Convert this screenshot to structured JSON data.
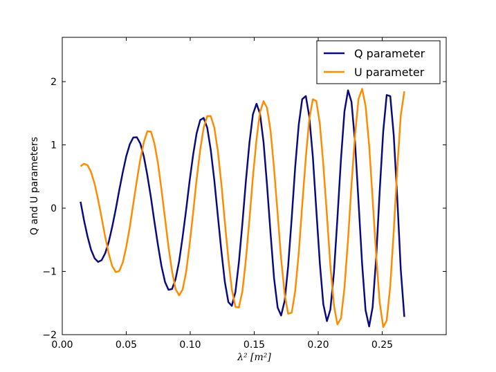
{
  "chart_data": {
    "type": "line",
    "xlabel": "λ² [m²]",
    "ylabel": "Q and U parameters",
    "xlim": [
      0.0,
      0.3
    ],
    "ylim": [
      -2.0,
      2.7
    ],
    "grid": false,
    "legend_placement": "top-right",
    "x_ticks": [
      "0.00",
      "0.05",
      "0.10",
      "0.15",
      "0.20",
      "0.25"
    ],
    "y_ticks": [
      "−2",
      "−1",
      "0",
      "1",
      "2"
    ],
    "series": [
      {
        "name": "Q parameter",
        "color": "#0a0a80",
        "x": [
          0.0143,
          0.017,
          0.0198,
          0.0225,
          0.0253,
          0.028,
          0.0308,
          0.0335,
          0.0363,
          0.039,
          0.0418,
          0.0445,
          0.0473,
          0.05,
          0.0528,
          0.0555,
          0.0583,
          0.061,
          0.0638,
          0.0665,
          0.0693,
          0.072,
          0.0748,
          0.0775,
          0.0803,
          0.083,
          0.0858,
          0.0885,
          0.0913,
          0.094,
          0.0968,
          0.0995,
          0.1023,
          0.105,
          0.1078,
          0.1105,
          0.1133,
          0.116,
          0.1188,
          0.1215,
          0.1243,
          0.127,
          0.1298,
          0.1325,
          0.1353,
          0.138,
          0.1408,
          0.1435,
          0.1463,
          0.149,
          0.1518,
          0.1545,
          0.1573,
          0.16,
          0.1628,
          0.1655,
          0.1683,
          0.171,
          0.1738,
          0.1765,
          0.1793,
          0.182,
          0.1848,
          0.1875,
          0.1903,
          0.193,
          0.1958,
          0.1985,
          0.2013,
          0.204,
          0.2068,
          0.2095,
          0.2123,
          0.215,
          0.2178,
          0.2205,
          0.2233,
          0.226,
          0.2288,
          0.2315,
          0.2343,
          0.237,
          0.2398,
          0.2425,
          0.2453,
          0.248,
          0.2508,
          0.2535,
          0.2563,
          0.259,
          0.2618,
          0.2645,
          0.2673
        ],
        "y": [
          0.101,
          -0.192,
          -0.453,
          -0.658,
          -0.793,
          -0.849,
          -0.822,
          -0.715,
          -0.536,
          -0.297,
          -0.018,
          0.28,
          0.568,
          0.82,
          1.011,
          1.117,
          1.12,
          1.021,
          0.812,
          0.518,
          0.166,
          -0.214,
          -0.586,
          -0.914,
          -1.167,
          -1.291,
          -1.278,
          -1.124,
          -0.844,
          -0.463,
          -0.026,
          0.428,
          0.848,
          1.184,
          1.393,
          1.426,
          1.269,
          0.925,
          0.443,
          -0.106,
          -0.672,
          -1.161,
          -1.485,
          -1.545,
          -1.326,
          -0.86,
          -0.232,
          0.432,
          1.041,
          1.485,
          1.65,
          1.494,
          1.04,
          0.366,
          -0.41,
          -1.109,
          -1.571,
          -1.697,
          -1.464,
          -0.918,
          -0.154,
          0.647,
          1.322,
          1.723,
          1.772,
          1.451,
          0.812,
          -0.027,
          -0.879,
          -1.52,
          -1.785,
          -1.603,
          -1.016,
          -0.161,
          0.78,
          1.528,
          1.862,
          1.68,
          1.034,
          0.097,
          -0.883,
          -1.614,
          -1.87,
          -1.566,
          -0.78,
          0.256,
          1.214,
          1.788,
          1.77,
          1.156,
          0.151,
          -0.971,
          -1.719
        ]
      },
      {
        "name": "U parameter",
        "color": "#ff8c00",
        "x": [
          0.0143,
          0.017,
          0.0198,
          0.0225,
          0.0253,
          0.028,
          0.0308,
          0.0335,
          0.0363,
          0.039,
          0.0418,
          0.0445,
          0.0473,
          0.05,
          0.0528,
          0.0555,
          0.0583,
          0.061,
          0.0638,
          0.0665,
          0.0693,
          0.072,
          0.0748,
          0.0775,
          0.0803,
          0.083,
          0.0858,
          0.0885,
          0.0913,
          0.094,
          0.0968,
          0.0995,
          0.1023,
          0.105,
          0.1078,
          0.1105,
          0.1133,
          0.116,
          0.1188,
          0.1215,
          0.1243,
          0.127,
          0.1298,
          0.1325,
          0.1353,
          0.138,
          0.1408,
          0.1435,
          0.1463,
          0.149,
          0.1518,
          0.1545,
          0.1573,
          0.16,
          0.1628,
          0.1655,
          0.1683,
          0.171,
          0.1738,
          0.1765,
          0.1793,
          0.182,
          0.1848,
          0.1875,
          0.1903,
          0.193,
          0.1958,
          0.1985,
          0.2013,
          0.204,
          0.2068,
          0.2095,
          0.2123,
          0.215,
          0.2178,
          0.2205,
          0.2233,
          0.226,
          0.2288,
          0.2315,
          0.2343,
          0.237,
          0.2398,
          0.2425,
          0.2453,
          0.248,
          0.2508,
          0.2535,
          0.2563,
          0.259,
          0.2618,
          0.2645,
          0.2673
        ],
        "y": [
          0.661,
          0.702,
          0.678,
          0.571,
          0.384,
          0.135,
          -0.155,
          -0.449,
          -0.717,
          -0.917,
          -1.011,
          -0.994,
          -0.858,
          -0.614,
          -0.294,
          0.069,
          0.437,
          0.775,
          1.047,
          1.216,
          1.209,
          1.024,
          0.706,
          0.295,
          -0.16,
          -0.611,
          -1.0,
          -1.277,
          -1.378,
          -1.289,
          -1.009,
          -0.577,
          -0.064,
          0.458,
          0.923,
          1.272,
          1.457,
          1.455,
          1.275,
          0.915,
          0.389,
          -0.21,
          -0.804,
          -1.283,
          -1.56,
          -1.572,
          -1.308,
          -0.809,
          -0.17,
          0.499,
          1.089,
          1.517,
          1.691,
          1.586,
          1.215,
          0.624,
          -0.09,
          -0.796,
          -1.361,
          -1.669,
          -1.652,
          -1.312,
          -0.706,
          0.05,
          0.795,
          1.401,
          1.721,
          1.696,
          1.326,
          0.688,
          -0.112,
          -0.91,
          -1.536,
          -1.838,
          -1.74,
          -1.259,
          -0.5,
          0.369,
          1.165,
          1.726,
          1.885,
          1.616,
          0.994,
          0.147,
          -0.747,
          -1.484,
          -1.881,
          -1.776,
          -1.229,
          -0.365,
          0.634,
          1.466,
          1.847
        ]
      }
    ]
  }
}
